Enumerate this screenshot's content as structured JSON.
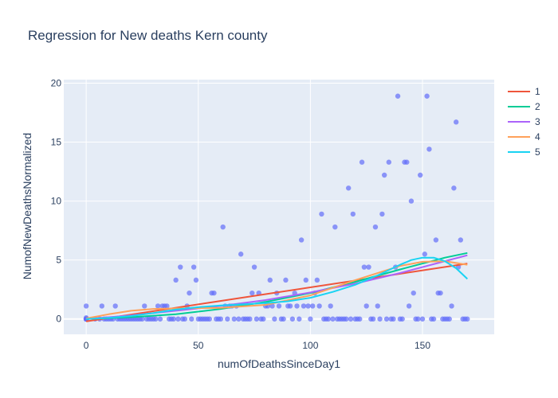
{
  "chart_data": {
    "type": "scatter",
    "title": "Regression for New deaths Kern county",
    "xlabel": "numOfDeathsSinceDay1",
    "ylabel": "NumofNewDeathsNormalized",
    "xlim": [
      -10,
      182
    ],
    "ylim": [
      -1.3,
      20.3
    ],
    "xticks": [
      0,
      50,
      100,
      150
    ],
    "yticks": [
      0,
      5,
      10,
      15,
      20
    ],
    "grid": true,
    "legend_position": "top-right",
    "background": "#e5ecf6",
    "scatter_color": "#636efa",
    "points": [
      [
        0,
        0
      ],
      [
        0,
        0
      ],
      [
        0,
        0
      ],
      [
        0,
        0
      ],
      [
        0,
        0
      ],
      [
        0,
        0
      ],
      [
        0,
        0
      ],
      [
        0,
        0
      ],
      [
        0,
        1.1
      ],
      [
        0,
        0.1
      ],
      [
        0,
        0
      ],
      [
        0,
        0
      ],
      [
        4,
        0
      ],
      [
        6,
        0
      ],
      [
        7,
        1.1
      ],
      [
        8,
        0
      ],
      [
        9,
        0
      ],
      [
        10,
        0
      ],
      [
        11,
        0
      ],
      [
        12,
        0
      ],
      [
        13,
        1.1
      ],
      [
        14,
        0
      ],
      [
        15,
        0
      ],
      [
        16,
        0
      ],
      [
        17,
        0
      ],
      [
        18,
        0
      ],
      [
        19,
        0
      ],
      [
        20,
        0
      ],
      [
        21,
        0
      ],
      [
        22,
        0
      ],
      [
        23,
        0
      ],
      [
        24,
        0
      ],
      [
        25,
        0
      ],
      [
        26,
        1.1
      ],
      [
        27,
        0
      ],
      [
        28,
        0
      ],
      [
        29,
        0
      ],
      [
        30,
        0
      ],
      [
        31,
        0
      ],
      [
        32,
        1.1
      ],
      [
        33,
        0
      ],
      [
        34,
        1.1
      ],
      [
        35,
        1.1
      ],
      [
        36,
        1.1
      ],
      [
        37,
        0
      ],
      [
        38,
        0
      ],
      [
        39,
        0
      ],
      [
        40,
        3.3
      ],
      [
        41,
        0
      ],
      [
        42,
        4.4
      ],
      [
        43,
        0
      ],
      [
        44,
        0
      ],
      [
        45,
        1.1
      ],
      [
        46,
        2.2
      ],
      [
        47,
        0
      ],
      [
        48,
        4.4
      ],
      [
        49,
        3.3
      ],
      [
        50,
        0
      ],
      [
        51,
        0
      ],
      [
        52,
        0
      ],
      [
        53,
        0
      ],
      [
        54,
        0
      ],
      [
        55,
        0
      ],
      [
        56,
        2.2
      ],
      [
        57,
        2.2
      ],
      [
        58,
        0
      ],
      [
        59,
        0
      ],
      [
        60,
        0
      ],
      [
        61,
        7.8
      ],
      [
        62,
        1.1
      ],
      [
        63,
        0
      ],
      [
        64,
        1.1
      ],
      [
        65,
        1.1
      ],
      [
        66,
        0
      ],
      [
        67,
        1.1
      ],
      [
        68,
        0
      ],
      [
        69,
        5.5
      ],
      [
        70,
        0
      ],
      [
        71,
        0
      ],
      [
        72,
        0
      ],
      [
        73,
        0
      ],
      [
        74,
        2.2
      ],
      [
        75,
        4.4
      ],
      [
        76,
        0
      ],
      [
        77,
        2.2
      ],
      [
        78,
        0
      ],
      [
        79,
        0
      ],
      [
        80,
        1.1
      ],
      [
        81,
        1.1
      ],
      [
        82,
        3.3
      ],
      [
        83,
        1.1
      ],
      [
        84,
        0
      ],
      [
        85,
        2.2
      ],
      [
        86,
        1.1
      ],
      [
        87,
        0
      ],
      [
        88,
        0
      ],
      [
        89,
        3.3
      ],
      [
        90,
        1.1
      ],
      [
        91,
        1.1
      ],
      [
        92,
        0
      ],
      [
        93,
        2.2
      ],
      [
        94,
        1.1
      ],
      [
        95,
        0
      ],
      [
        96,
        6.7
      ],
      [
        97,
        1.1
      ],
      [
        98,
        3.3
      ],
      [
        99,
        1.1
      ],
      [
        100,
        0
      ],
      [
        101,
        1.1
      ],
      [
        102,
        2.2
      ],
      [
        103,
        3.3
      ],
      [
        104,
        1.1
      ],
      [
        105,
        8.9
      ],
      [
        106,
        0
      ],
      [
        107,
        0
      ],
      [
        108,
        0
      ],
      [
        109,
        1.1
      ],
      [
        110,
        0
      ],
      [
        111,
        7.8
      ],
      [
        112,
        0
      ],
      [
        113,
        0
      ],
      [
        114,
        0
      ],
      [
        115,
        0
      ],
      [
        116,
        0
      ],
      [
        117,
        11.1
      ],
      [
        118,
        0
      ],
      [
        119,
        8.9
      ],
      [
        120,
        0
      ],
      [
        121,
        0
      ],
      [
        122,
        0
      ],
      [
        123,
        13.3
      ],
      [
        124,
        4.4
      ],
      [
        125,
        1.1
      ],
      [
        126,
        4.4
      ],
      [
        127,
        0
      ],
      [
        128,
        0
      ],
      [
        129,
        7.8
      ],
      [
        130,
        1.1
      ],
      [
        131,
        0
      ],
      [
        132,
        8.9
      ],
      [
        133,
        12.2
      ],
      [
        134,
        0
      ],
      [
        135,
        13.3
      ],
      [
        136,
        0
      ],
      [
        137,
        0
      ],
      [
        138,
        4.4
      ],
      [
        139,
        18.9
      ],
      [
        140,
        0
      ],
      [
        141,
        0
      ],
      [
        142,
        13.3
      ],
      [
        143,
        13.3
      ],
      [
        144,
        1.1
      ],
      [
        145,
        10
      ],
      [
        146,
        2.2
      ],
      [
        147,
        0
      ],
      [
        148,
        0
      ],
      [
        149,
        12.2
      ],
      [
        150,
        0
      ],
      [
        151,
        5.5
      ],
      [
        152,
        18.9
      ],
      [
        153,
        14.4
      ],
      [
        154,
        0
      ],
      [
        155,
        0
      ],
      [
        156,
        6.7
      ],
      [
        157,
        2.2
      ],
      [
        158,
        2.2
      ],
      [
        159,
        0
      ],
      [
        160,
        0
      ],
      [
        161,
        0
      ],
      [
        162,
        0
      ],
      [
        163,
        1.1
      ],
      [
        164,
        11.1
      ],
      [
        165,
        16.7
      ],
      [
        166,
        4.4
      ],
      [
        167,
        6.7
      ],
      [
        168,
        0
      ],
      [
        169,
        0
      ],
      [
        170,
        0
      ]
    ],
    "series": [
      {
        "name": "1",
        "color": "#ef553b",
        "x": [
          0,
          170
        ],
        "y": [
          -0.2,
          4.7
        ]
      },
      {
        "name": "2",
        "color": "#00cc96",
        "x": [
          0,
          20,
          40,
          60,
          80,
          100,
          120,
          140,
          160,
          170
        ],
        "y": [
          0,
          0.15,
          0.4,
          0.85,
          1.45,
          2.2,
          3.15,
          4.2,
          5.2,
          5.6
        ]
      },
      {
        "name": "3",
        "color": "#ab63fa",
        "x": [
          0,
          20,
          40,
          60,
          80,
          100,
          120,
          140,
          160,
          170
        ],
        "y": [
          0,
          0.3,
          0.7,
          1.1,
          1.6,
          2.25,
          3.0,
          3.9,
          4.9,
          5.4
        ]
      },
      {
        "name": "4",
        "color": "#ffa15a",
        "x": [
          0,
          10,
          20,
          30,
          40,
          60,
          80,
          100,
          120,
          140,
          150,
          160,
          170
        ],
        "y": [
          0.05,
          0.4,
          0.7,
          0.85,
          0.9,
          0.95,
          1.2,
          2.0,
          3.3,
          4.5,
          4.85,
          4.9,
          4.6
        ]
      },
      {
        "name": "5",
        "color": "#19d3f3",
        "x": [
          0,
          10,
          20,
          30,
          40,
          50,
          60,
          70,
          80,
          90,
          100,
          110,
          120,
          130,
          140,
          145,
          150,
          155,
          160,
          165,
          170
        ],
        "y": [
          0,
          0.1,
          0.25,
          0.5,
          0.8,
          1.0,
          1.15,
          1.25,
          1.35,
          1.5,
          1.8,
          2.3,
          2.9,
          3.7,
          4.6,
          5.0,
          5.2,
          5.2,
          4.9,
          4.3,
          3.4
        ]
      }
    ]
  }
}
